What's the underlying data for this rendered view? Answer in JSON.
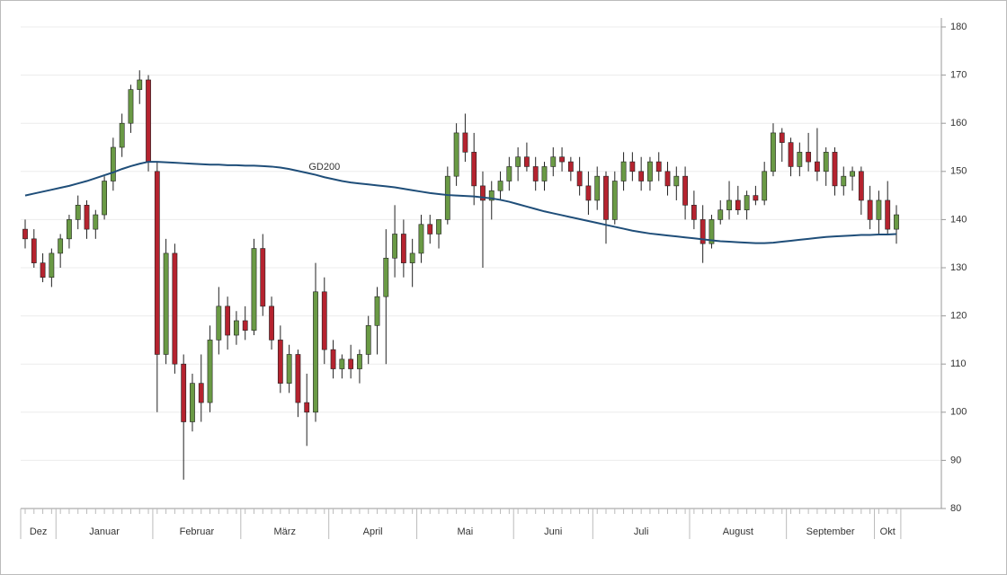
{
  "chart_data": {
    "type": "candlestick",
    "categories": [
      "Dez",
      null,
      null,
      null,
      "Januar",
      null,
      null,
      null,
      null,
      null,
      null,
      null,
      null,
      null,
      null,
      "Februar",
      null,
      null,
      null,
      null,
      null,
      null,
      null,
      null,
      null,
      "März",
      null,
      null,
      null,
      null,
      null,
      null,
      null,
      null,
      null,
      "April",
      null,
      null,
      null,
      null,
      null,
      null,
      null,
      null,
      null,
      "Mai",
      null,
      null,
      null,
      null,
      null,
      null,
      null,
      null,
      null,
      null,
      "Juni",
      null,
      null,
      null,
      null,
      null,
      null,
      null,
      null,
      "Juli",
      null,
      null,
      null,
      null,
      null,
      null,
      null,
      null,
      null,
      null,
      "August",
      null,
      null,
      null,
      null,
      null,
      null,
      null,
      null,
      null,
      null,
      "September",
      null,
      null,
      null,
      null,
      null,
      null,
      null,
      null,
      null,
      "Okt",
      null,
      null
    ],
    "open": [
      138,
      136,
      131,
      128,
      133,
      136,
      140,
      143,
      138,
      141,
      148,
      155,
      160,
      167,
      169,
      150,
      112,
      133,
      110,
      98,
      106,
      102,
      115,
      122,
      116,
      119,
      117,
      134,
      122,
      115,
      106,
      112,
      102,
      100,
      125,
      113,
      109,
      111,
      109,
      112,
      118,
      124,
      132,
      137,
      131,
      133,
      139,
      137,
      140,
      149,
      158,
      154,
      147,
      144,
      146,
      148,
      151,
      153,
      151,
      148,
      151,
      153,
      152,
      150,
      147,
      144,
      149,
      140,
      148,
      152,
      150,
      148,
      152,
      150,
      147,
      149,
      143,
      140,
      135,
      140,
      142,
      144,
      142,
      145,
      144,
      150,
      158,
      156,
      151,
      154,
      152,
      150,
      154,
      147,
      149,
      150,
      144,
      140,
      144,
      138
    ],
    "high": [
      140,
      138,
      133,
      134,
      137,
      141,
      145,
      144,
      142,
      149,
      157,
      162,
      168,
      171,
      170,
      152,
      136,
      135,
      112,
      108,
      112,
      118,
      126,
      124,
      121,
      122,
      136,
      137,
      124,
      118,
      114,
      113,
      108,
      131,
      128,
      115,
      112,
      114,
      113,
      120,
      126,
      138,
      143,
      140,
      136,
      141,
      141,
      140,
      151,
      160,
      162,
      158,
      150,
      148,
      150,
      153,
      155,
      156,
      153,
      152,
      155,
      155,
      153,
      153,
      150,
      151,
      150,
      150,
      154,
      154,
      153,
      153,
      154,
      152,
      151,
      151,
      146,
      143,
      141,
      144,
      148,
      147,
      146,
      147,
      152,
      160,
      159,
      157,
      156,
      158,
      159,
      155,
      155,
      151,
      151,
      151,
      147,
      146,
      148,
      143
    ],
    "low": [
      134,
      130,
      127,
      126,
      130,
      134,
      138,
      136,
      136,
      140,
      146,
      153,
      158,
      164,
      150,
      100,
      110,
      108,
      86,
      96,
      98,
      100,
      112,
      113,
      114,
      115,
      116,
      120,
      113,
      104,
      104,
      99,
      93,
      98,
      110,
      107,
      107,
      107,
      106,
      110,
      112,
      110,
      128,
      128,
      126,
      131,
      135,
      134,
      139,
      147,
      152,
      143,
      130,
      140,
      144,
      146,
      148,
      150,
      146,
      146,
      149,
      150,
      148,
      145,
      141,
      142,
      135,
      139,
      146,
      148,
      146,
      146,
      148,
      145,
      144,
      140,
      138,
      131,
      134,
      139,
      140,
      141,
      140,
      143,
      143,
      149,
      152,
      149,
      149,
      150,
      148,
      147,
      145,
      145,
      146,
      141,
      138,
      137,
      137,
      135
    ],
    "close": [
      136,
      131,
      128,
      133,
      136,
      140,
      143,
      138,
      141,
      148,
      155,
      160,
      167,
      169,
      152,
      112,
      133,
      110,
      98,
      106,
      102,
      115,
      122,
      116,
      119,
      117,
      134,
      122,
      115,
      106,
      112,
      102,
      100,
      125,
      113,
      109,
      111,
      109,
      112,
      118,
      124,
      132,
      137,
      131,
      133,
      139,
      137,
      140,
      149,
      158,
      154,
      147,
      144,
      146,
      148,
      151,
      153,
      151,
      148,
      151,
      153,
      152,
      150,
      147,
      144,
      149,
      140,
      148,
      152,
      150,
      148,
      152,
      150,
      147,
      149,
      143,
      140,
      135,
      140,
      142,
      144,
      142,
      145,
      144,
      150,
      158,
      156,
      151,
      154,
      152,
      150,
      154,
      147,
      149,
      150,
      144,
      140,
      144,
      138,
      141
    ],
    "up_color": "#6a9a45",
    "down_color": "#b5232f",
    "series": [
      {
        "name": "GD200",
        "color": "#1f4e79",
        "values": [
          145,
          145.4,
          145.8,
          146.2,
          146.6,
          147,
          147.5,
          148,
          148.6,
          149.2,
          149.8,
          150.5,
          151.1,
          151.6,
          152,
          152,
          151.9,
          151.8,
          151.7,
          151.6,
          151.5,
          151.4,
          151.4,
          151.3,
          151.3,
          151.2,
          151.2,
          151.1,
          151,
          150.8,
          150.5,
          150.1,
          149.7,
          149.3,
          148.8,
          148.4,
          148,
          147.7,
          147.5,
          147.3,
          147.1,
          146.9,
          146.7,
          146.4,
          146.1,
          145.8,
          145.5,
          145.3,
          145.1,
          145,
          144.9,
          144.8,
          144.6,
          144.4,
          144.1,
          143.7,
          143.2,
          142.7,
          142.2,
          141.7,
          141.3,
          140.9,
          140.5,
          140.1,
          139.7,
          139.3,
          138.9,
          138.5,
          138.1,
          137.7,
          137.4,
          137.1,
          136.9,
          136.7,
          136.5,
          136.3,
          136.1,
          135.9,
          135.7,
          135.5,
          135.4,
          135.3,
          135.2,
          135.1,
          135.1,
          135.2,
          135.4,
          135.6,
          135.8,
          136,
          136.2,
          136.4,
          136.5,
          136.6,
          136.7,
          136.8,
          136.8,
          136.9,
          136.9,
          137
        ]
      }
    ],
    "ylim": [
      80,
      180
    ],
    "yticks": [
      80,
      90,
      100,
      110,
      120,
      130,
      140,
      150,
      160,
      170,
      180
    ],
    "grid": true
  }
}
